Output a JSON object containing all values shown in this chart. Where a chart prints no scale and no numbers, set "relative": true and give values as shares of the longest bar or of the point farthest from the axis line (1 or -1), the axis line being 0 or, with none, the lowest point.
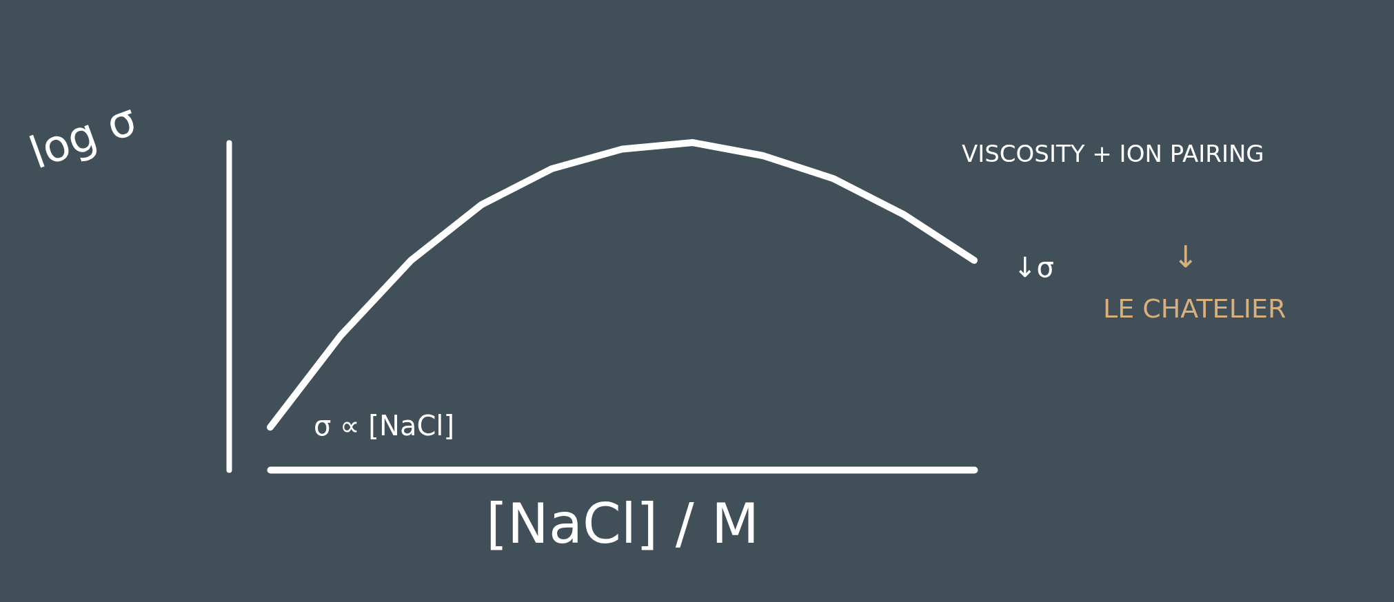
{
  "chart_data": {
    "type": "line",
    "relative": true,
    "xlabel": "[NaCl] / M",
    "ylabel": "log σ",
    "categories": [
      null,
      null,
      null,
      null,
      null,
      null,
      null,
      null,
      null,
      null,
      null
    ],
    "series": [
      {
        "color": "#ffffff",
        "values": [
          0.13,
          0.41,
          0.64,
          0.81,
          0.92,
          0.98,
          1,
          0.96,
          0.89,
          0.78,
          0.64
        ]
      }
    ],
    "annotations": [
      "σ ∝ [NaCl]",
      "VISCOSITY + ION PAIRING",
      "↓σ",
      "↓",
      "LE CHATELIER"
    ],
    "grid": false,
    "legend": false,
    "marker": "none",
    "line_style": "solid"
  }
}
